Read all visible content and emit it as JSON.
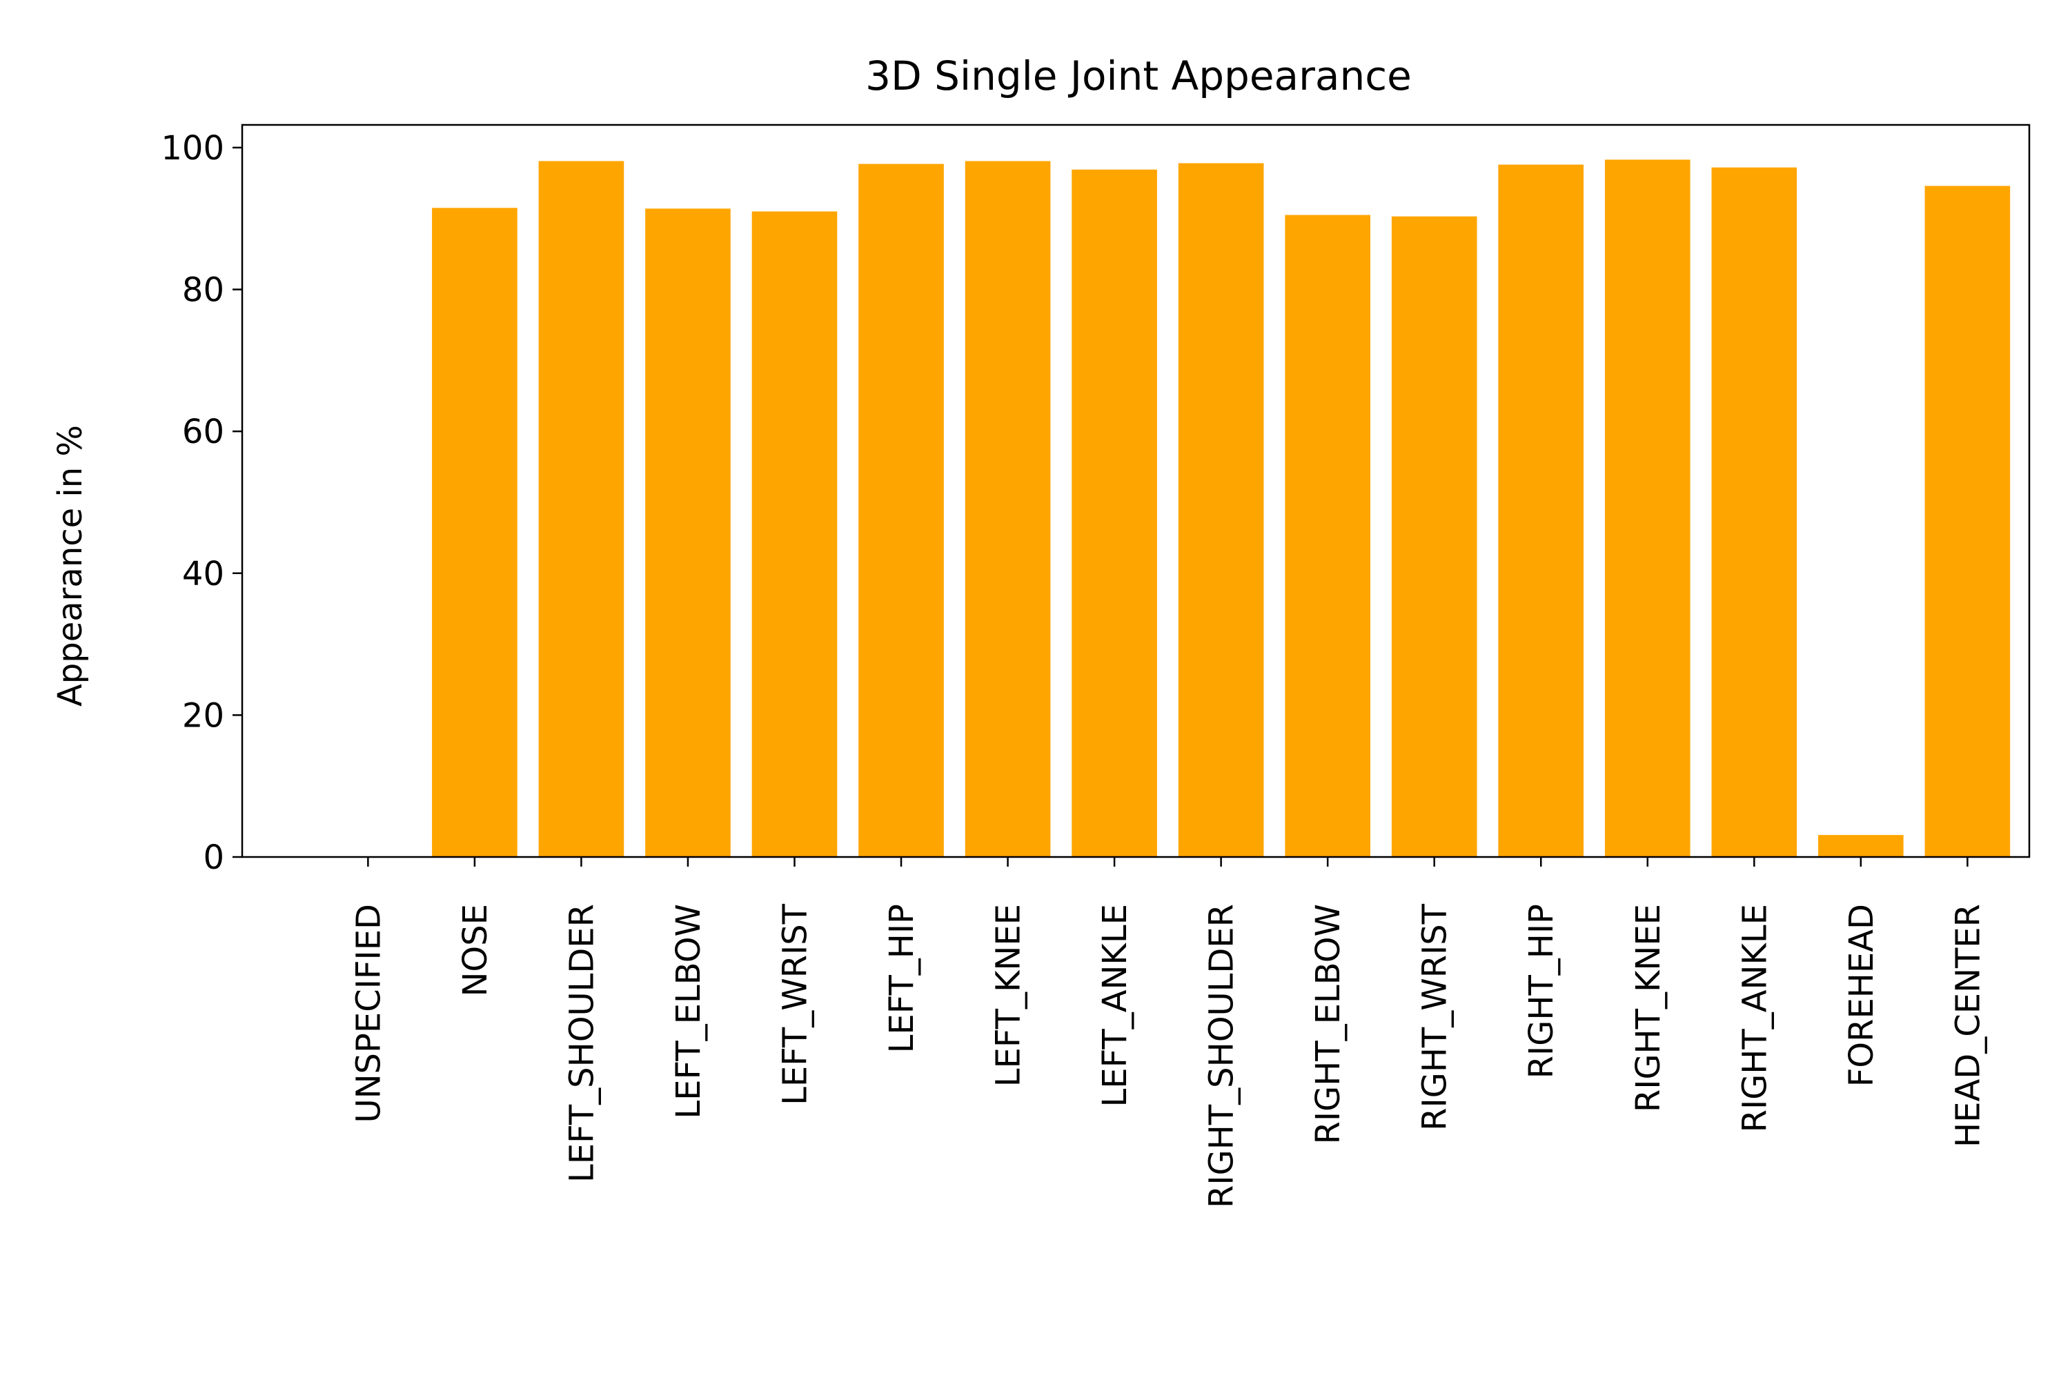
{
  "chart_data": {
    "type": "bar",
    "title": "3D Single Joint Appearance",
    "xlabel": "",
    "ylabel": "Appearance in %",
    "categories": [
      "UNSPECIFIED",
      "NOSE",
      "LEFT_SHOULDER",
      "LEFT_ELBOW",
      "LEFT_WRIST",
      "LEFT_HIP",
      "LEFT_KNEE",
      "LEFT_ANKLE",
      "RIGHT_SHOULDER",
      "RIGHT_ELBOW",
      "RIGHT_WRIST",
      "RIGHT_HIP",
      "RIGHT_KNEE",
      "RIGHT_ANKLE",
      "FOREHEAD",
      "HEAD_CENTER"
    ],
    "values": [
      0,
      91.5,
      98.1,
      91.4,
      91.0,
      97.7,
      98.1,
      96.9,
      97.8,
      90.5,
      90.3,
      97.6,
      98.3,
      97.2,
      3.1,
      94.6
    ],
    "ylim": [
      0,
      103.2
    ],
    "yticks": [
      0,
      20,
      40,
      60,
      80,
      100
    ],
    "bar_color": "#ffa500",
    "grid": false,
    "legend": "none"
  }
}
